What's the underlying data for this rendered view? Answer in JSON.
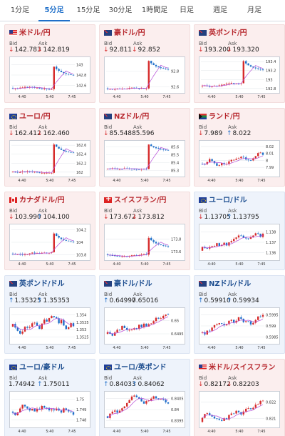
{
  "tabs": [
    {
      "label": "1分足"
    },
    {
      "label": "5分足",
      "active": true
    },
    {
      "label": "15分足"
    },
    {
      "label": "30分足"
    },
    {
      "label": "1時間足"
    },
    {
      "label": "日足"
    },
    {
      "label": "週足"
    },
    {
      "label": "月足"
    }
  ],
  "labels": {
    "bid": "Bid",
    "ask": "Ask"
  },
  "colors": {
    "rise": "#d62b2b",
    "fall": "#1f6fc9",
    "ma": "#b54bd6",
    "grid": "#e6e9ee"
  },
  "cards": [
    {
      "title": "米ドル/円",
      "flag": "usd",
      "theme": "jpy",
      "bid": "142.783",
      "bid_dir": "down",
      "ask": "142.819",
      "ask_dir": "down",
      "chart_data": {
        "type": "candlestick",
        "x_labels": [
          "4:40",
          "5:40",
          "7:45"
        ],
        "y_ticks": [
          "143",
          "142.8",
          "142.6"
        ],
        "ylim": [
          142.5,
          143.1
        ],
        "open": 142.55,
        "pattern": "spike",
        "end": 142.78
      }
    },
    {
      "title": "豪ドル/円",
      "flag": "aud",
      "theme": "jpy",
      "bid": "92.811",
      "bid_dir": "down",
      "ask": "92.852",
      "ask_dir": "down",
      "chart_data": {
        "type": "candlestick",
        "x_labels": [
          "4:40",
          "5:40",
          "7:45"
        ],
        "y_ticks": [
          "92.8",
          "92.6"
        ],
        "ylim": [
          92.55,
          92.95
        ],
        "open": 92.58,
        "pattern": "spike",
        "end": 92.81
      }
    },
    {
      "title": "英ポンド/円",
      "flag": "gbp",
      "theme": "jpy",
      "bid": "193.200",
      "bid_dir": "down",
      "ask": "193.320",
      "ask_dir": "down",
      "chart_data": {
        "type": "candlestick",
        "x_labels": [
          "4:40",
          "5:40",
          "7:45"
        ],
        "y_ticks": [
          "193.4",
          "193.2",
          "193",
          "192.8"
        ],
        "ylim": [
          192.75,
          193.45
        ],
        "open": 192.85,
        "pattern": "spike",
        "end": 193.2
      }
    },
    {
      "title": "ユーロ/円",
      "flag": "eur",
      "theme": "jpy",
      "bid": "162.412",
      "bid_dir": "down",
      "ask": "162.460",
      "ask_dir": "down",
      "chart_data": {
        "type": "candlestick",
        "x_labels": [
          "4:40",
          "5:40",
          "7:45"
        ],
        "y_ticks": [
          "162.6",
          "162.4",
          "162.2",
          "162"
        ],
        "ylim": [
          161.95,
          162.65
        ],
        "open": 162.0,
        "pattern": "spike",
        "end": 162.41
      }
    },
    {
      "title": "NZドル/円",
      "flag": "nzd",
      "theme": "jpy",
      "bid": "85.548",
      "bid_dir": "down",
      "ask": "85.596",
      "ask_dir": "none",
      "chart_data": {
        "type": "candlestick",
        "x_labels": [
          "4:40",
          "5:40",
          "7:45"
        ],
        "y_ticks": [
          "85.6",
          "85.5",
          "85.4",
          "85.3"
        ],
        "ylim": [
          85.25,
          85.65
        ],
        "open": 85.32,
        "pattern": "spike",
        "end": 85.55
      }
    },
    {
      "title": "ランド/円",
      "flag": "zar",
      "theme": "jpy",
      "bid": "7.989",
      "bid_dir": "down",
      "ask": "8.022",
      "ask_dir": "up",
      "chart_data": {
        "type": "candlestick",
        "x_labels": [
          "4:40",
          "5:40",
          "7:45"
        ],
        "y_ticks": [
          "8.02",
          "8.01",
          "8",
          "7.99"
        ],
        "ylim": [
          7.98,
          8.025
        ],
        "open": 7.995,
        "pattern": "drift",
        "end": 8.0
      }
    },
    {
      "title": "カナダドル/円",
      "flag": "cad",
      "theme": "jpy",
      "bid": "103.990",
      "bid_dir": "down",
      "ask": "104.100",
      "ask_dir": "up",
      "chart_data": {
        "type": "candlestick",
        "x_labels": [
          "4:40",
          "5:40",
          "7:45"
        ],
        "y_ticks": [
          "104.2",
          "104",
          "103.8"
        ],
        "ylim": [
          103.75,
          104.25
        ],
        "open": 103.82,
        "pattern": "spike",
        "end": 103.99
      }
    },
    {
      "title": "スイスフラン/円",
      "flag": "chf",
      "theme": "jpy",
      "bid": "173.672",
      "bid_dir": "down",
      "ask": "173.812",
      "ask_dir": "down",
      "chart_data": {
        "type": "candlestick",
        "x_labels": [
          "4:40",
          "5:40",
          "7:45"
        ],
        "y_ticks": [
          "173.8",
          "173.6"
        ],
        "ylim": [
          173.5,
          174.0
        ],
        "open": 173.56,
        "pattern": "spike",
        "end": 173.67
      }
    },
    {
      "title": "ユーロ/ドル",
      "flag": "eur",
      "theme": "cross",
      "bid": "1.13705",
      "bid_dir": "down",
      "ask": "1.13795",
      "ask_dir": "up",
      "chart_data": {
        "type": "candlestick",
        "x_labels": [
          "4:40",
          "5:40",
          "7:45"
        ],
        "y_ticks": [
          "1.138",
          "1.137",
          "1.136"
        ],
        "ylim": [
          1.1355,
          1.1385
        ],
        "open": 1.1362,
        "pattern": "drift",
        "end": 1.1371
      }
    },
    {
      "title": "英ポンド/ドル",
      "flag": "gbp",
      "theme": "cross",
      "bid": "1.35325",
      "bid_dir": "up",
      "ask": "1.35353",
      "ask_dir": "up",
      "chart_data": {
        "type": "candlestick",
        "x_labels": [
          "4:40",
          "5:40",
          "7:45"
        ],
        "y_ticks": [
          "1.354",
          "1.3535",
          "1.353",
          "1.3525"
        ],
        "ylim": [
          1.3522,
          1.3543
        ],
        "open": 1.3532,
        "pattern": "dip",
        "end": 1.3533
      }
    },
    {
      "title": "豪ドル/ドル",
      "flag": "aud",
      "theme": "cross",
      "bid": "0.64997",
      "bid_dir": "up",
      "ask": "0.65016",
      "ask_dir": "none",
      "chart_data": {
        "type": "candlestick",
        "x_labels": [
          "4:40",
          "5:40",
          "7:45"
        ],
        "y_ticks": [
          "0.65",
          "0.6495"
        ],
        "ylim": [
          0.6492,
          0.6504
        ],
        "open": 0.6495,
        "pattern": "drift",
        "end": 0.65
      }
    },
    {
      "title": "NZドル/ドル",
      "flag": "nzd",
      "theme": "cross",
      "bid": "0.59910",
      "bid_dir": "up",
      "ask": "0.59934",
      "ask_dir": "up",
      "chart_data": {
        "type": "candlestick",
        "x_labels": [
          "4:40",
          "5:40",
          "7:45"
        ],
        "y_ticks": [
          "0.5995",
          "0.599",
          "0.5985"
        ],
        "ylim": [
          0.5983,
          0.5997
        ],
        "open": 0.5987,
        "pattern": "drift",
        "end": 0.5991
      }
    },
    {
      "title": "ユーロ/豪ドル",
      "flag": "eur",
      "theme": "cross",
      "bid": "1.74942",
      "bid_dir": "none",
      "ask": "1.75011",
      "ask_dir": "up",
      "chart_data": {
        "type": "candlestick",
        "x_labels": [
          "4:40",
          "5:40",
          "7:45"
        ],
        "y_ticks": [
          "1.75",
          "1.749",
          "1.748"
        ],
        "ylim": [
          1.7475,
          1.7505
        ],
        "open": 1.7488,
        "pattern": "drift",
        "end": 1.7494
      }
    },
    {
      "title": "ユーロ/英ポンド",
      "flag": "eur",
      "theme": "cross",
      "bid": "0.84033",
      "bid_dir": "up",
      "ask": "0.84062",
      "ask_dir": "up",
      "chart_data": {
        "type": "candlestick",
        "x_labels": [
          "4:40",
          "5:40",
          "7:45"
        ],
        "y_ticks": [
          "0.8405",
          "0.84",
          "0.8395"
        ],
        "ylim": [
          0.8393,
          0.8407
        ],
        "open": 0.8397,
        "pattern": "drift",
        "end": 0.8403
      }
    },
    {
      "title": "米ドル/スイスフラン",
      "flag": "usd",
      "theme": "jpy",
      "bid": "0.82172",
      "bid_dir": "down",
      "ask": "0.82203",
      "ask_dir": "down",
      "chart_data": {
        "type": "candlestick",
        "x_labels": [
          "4:40",
          "5:40",
          "7:45"
        ],
        "y_ticks": [
          "0.822",
          "0.821"
        ],
        "ylim": [
          0.8206,
          0.8225
        ],
        "open": 0.8208,
        "pattern": "drift",
        "end": 0.8217
      }
    }
  ]
}
